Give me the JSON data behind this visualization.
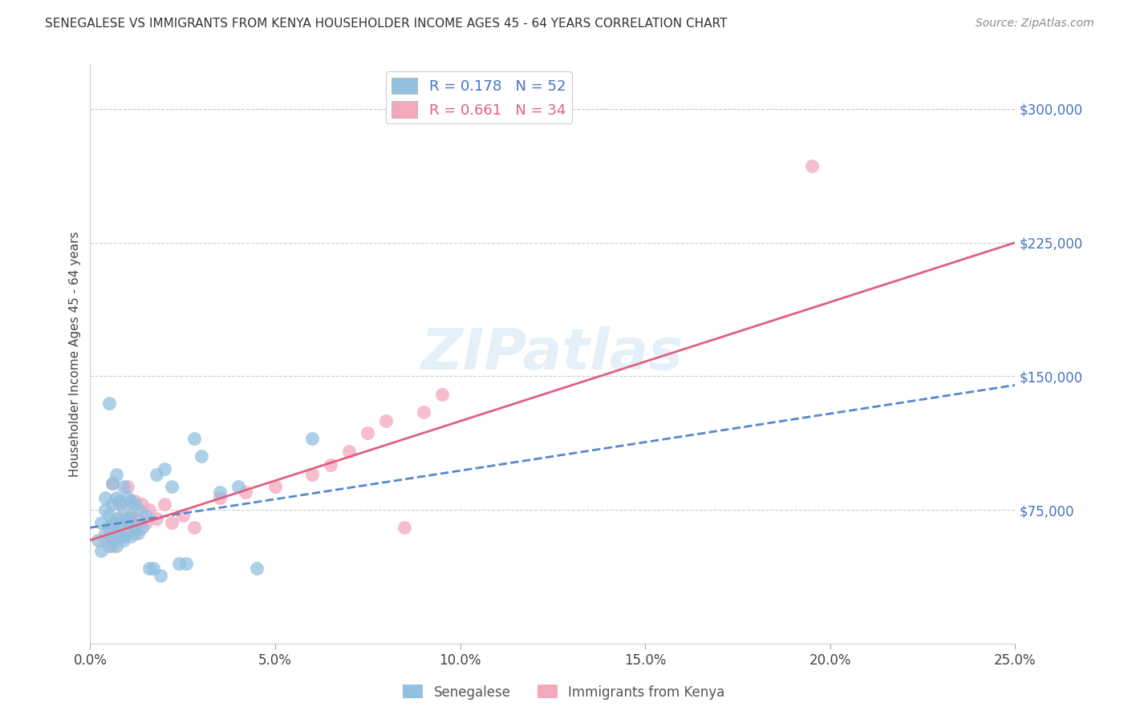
{
  "title": "SENEGALESE VS IMMIGRANTS FROM KENYA HOUSEHOLDER INCOME AGES 45 - 64 YEARS CORRELATION CHART",
  "source": "Source: ZipAtlas.com",
  "ylabel": "Householder Income Ages 45 - 64 years",
  "xlabel_ticks": [
    "0.0%",
    "5.0%",
    "10.0%",
    "15.0%",
    "20.0%",
    "25.0%"
  ],
  "xlabel_vals": [
    0.0,
    0.05,
    0.1,
    0.15,
    0.2,
    0.25
  ],
  "ytick_labels": [
    "$75,000",
    "$150,000",
    "$225,000",
    "$300,000"
  ],
  "ytick_vals": [
    75000,
    150000,
    225000,
    300000
  ],
  "xlim": [
    0.0,
    0.25
  ],
  "ylim": [
    0,
    325000
  ],
  "legend_label1": "Senegalese",
  "legend_label2": "Immigrants from Kenya",
  "blue_color": "#92c0e0",
  "pink_color": "#f4a8bc",
  "trendline_blue_color": "#5588cc",
  "trendline_pink_color": "#e06080",
  "watermark": "ZIPatlas",
  "background_color": "#ffffff",
  "senegalese_x": [
    0.002,
    0.003,
    0.003,
    0.004,
    0.004,
    0.004,
    0.005,
    0.005,
    0.005,
    0.005,
    0.006,
    0.006,
    0.006,
    0.006,
    0.007,
    0.007,
    0.007,
    0.007,
    0.007,
    0.008,
    0.008,
    0.008,
    0.009,
    0.009,
    0.009,
    0.009,
    0.01,
    0.01,
    0.01,
    0.011,
    0.011,
    0.011,
    0.012,
    0.012,
    0.013,
    0.013,
    0.014,
    0.015,
    0.016,
    0.017,
    0.018,
    0.019,
    0.02,
    0.022,
    0.024,
    0.026,
    0.028,
    0.03,
    0.035,
    0.04,
    0.045,
    0.06
  ],
  "senegalese_y": [
    58000,
    52000,
    68000,
    62000,
    75000,
    82000,
    55000,
    65000,
    72000,
    135000,
    58000,
    68000,
    78000,
    90000,
    55000,
    62000,
    70000,
    82000,
    95000,
    60000,
    68000,
    80000,
    58000,
    68000,
    75000,
    88000,
    62000,
    70000,
    82000,
    60000,
    70000,
    80000,
    65000,
    78000,
    62000,
    75000,
    65000,
    72000,
    42000,
    42000,
    95000,
    38000,
    98000,
    88000,
    45000,
    45000,
    115000,
    105000,
    85000,
    88000,
    42000,
    115000
  ],
  "kenya_x": [
    0.004,
    0.005,
    0.006,
    0.006,
    0.007,
    0.008,
    0.008,
    0.009,
    0.01,
    0.01,
    0.011,
    0.012,
    0.012,
    0.013,
    0.014,
    0.015,
    0.016,
    0.018,
    0.02,
    0.022,
    0.025,
    0.028,
    0.035,
    0.042,
    0.05,
    0.06,
    0.065,
    0.07,
    0.075,
    0.08,
    0.085,
    0.09,
    0.095,
    0.195
  ],
  "kenya_y": [
    58000,
    65000,
    55000,
    90000,
    62000,
    70000,
    78000,
    60000,
    68000,
    88000,
    72000,
    62000,
    80000,
    70000,
    78000,
    68000,
    75000,
    70000,
    78000,
    68000,
    72000,
    65000,
    82000,
    85000,
    88000,
    95000,
    100000,
    108000,
    118000,
    125000,
    65000,
    130000,
    140000,
    268000
  ],
  "trendline_blue_x0": 0.0,
  "trendline_blue_y0": 65000,
  "trendline_blue_x1": 0.25,
  "trendline_blue_y1": 145000,
  "trendline_pink_x0": 0.0,
  "trendline_pink_y0": 58000,
  "trendline_pink_x1": 0.25,
  "trendline_pink_y1": 225000
}
